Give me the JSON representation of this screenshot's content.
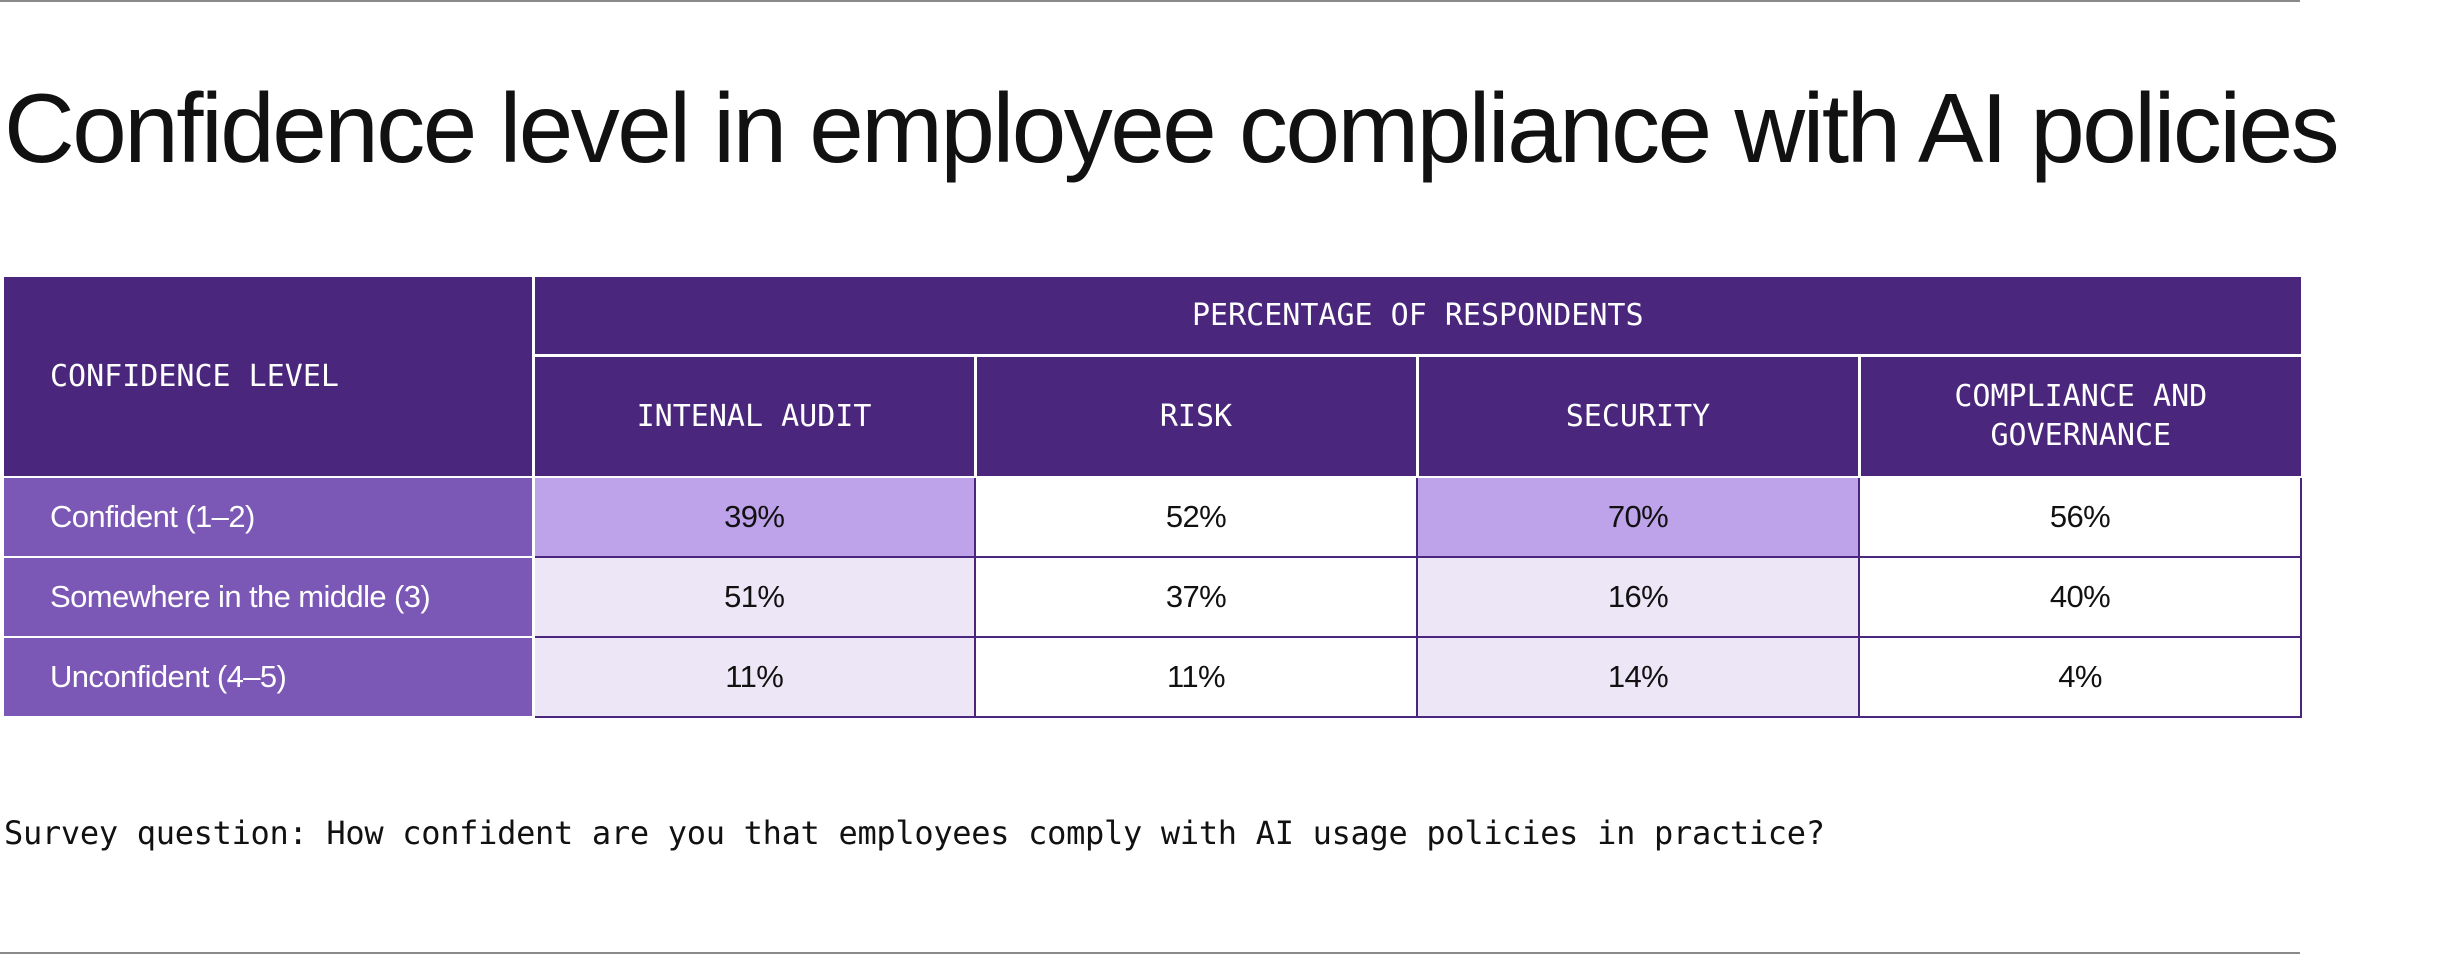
{
  "title": "Confidence level in employee compliance with AI policies",
  "colors": {
    "header": "#4a267c",
    "row_label": "#7c58b6",
    "highlight": "#bea2ea",
    "light": "#ece6f6",
    "white": "#ffffff"
  },
  "chart_data": {
    "type": "table",
    "title": "Confidence level in employee compliance with AI policies",
    "row_header": "CONFIDENCE LEVEL",
    "column_group": "PERCENTAGE OF RESPONDENTS",
    "columns": [
      "INTENAL AUDIT",
      "RISK",
      "SECURITY",
      "COMPLIANCE AND GOVERNANCE"
    ],
    "rows": [
      {
        "label": "Confident (1–2)",
        "values": [
          "39%",
          "52%",
          "70%",
          "56%"
        ]
      },
      {
        "label": "Somewhere in the middle (3)",
        "values": [
          "51%",
          "37%",
          "16%",
          "40%"
        ]
      },
      {
        "label": "Unconfident (4–5)",
        "values": [
          "11%",
          "11%",
          "14%",
          "4%"
        ]
      }
    ]
  },
  "footnote": "Survey question: How confident are you that employees comply with AI usage policies in practice?"
}
